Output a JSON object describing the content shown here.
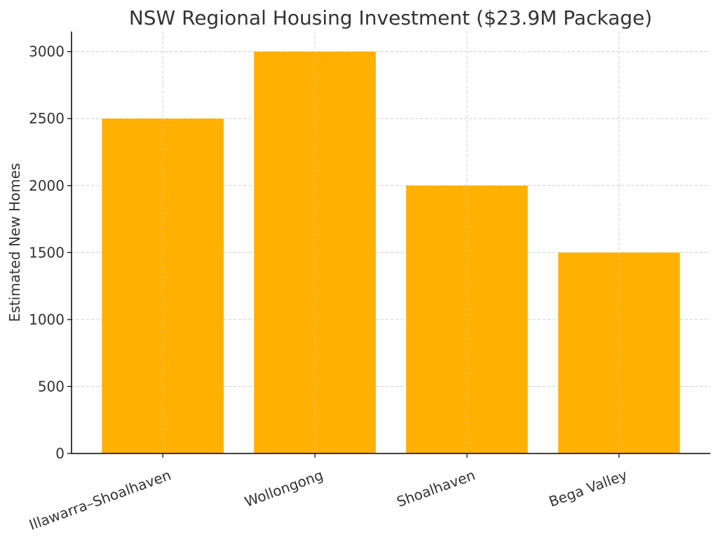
{
  "chart_data": {
    "type": "bar",
    "title": "NSW Regional Housing Investment ($23.9M Package)",
    "xlabel": "",
    "ylabel": "Estimated New Homes",
    "categories": [
      "Illawarra–Shoalhaven",
      "Wollongong",
      "Shoalhaven",
      "Bega Valley"
    ],
    "values": [
      2500,
      3000,
      2000,
      1500
    ],
    "ylim": [
      0,
      3150
    ],
    "yticks": [
      0,
      500,
      1000,
      1500,
      2000,
      2500,
      3000
    ],
    "grid": true,
    "bar_color": "#FFB000",
    "axis_color": "#000000",
    "grid_color": "#CCCCCC"
  }
}
